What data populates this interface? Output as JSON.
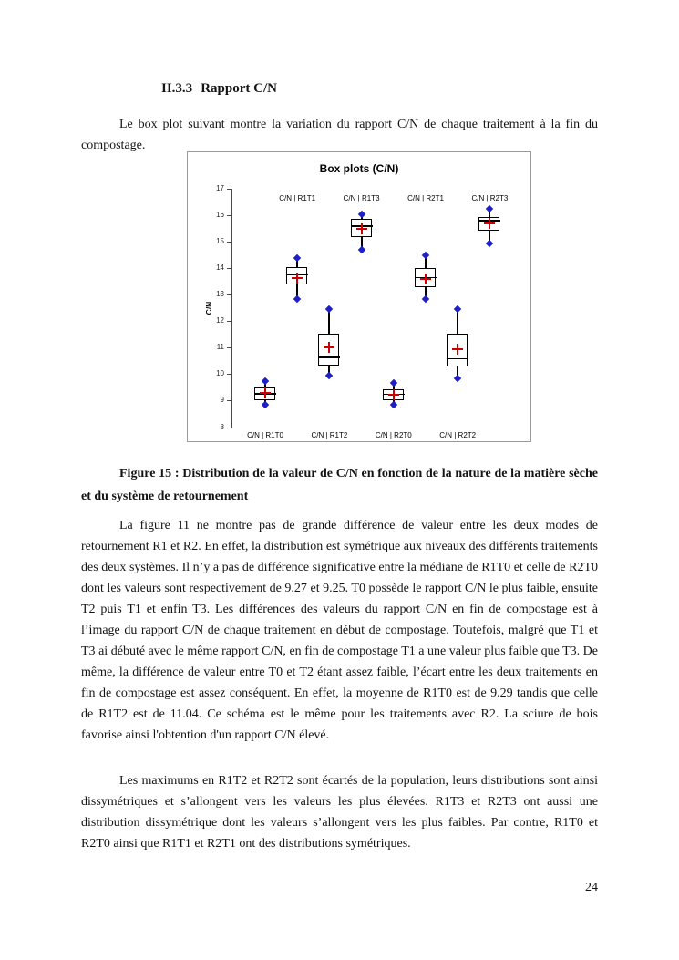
{
  "document": {
    "section": {
      "number": "II.3.3",
      "title": "Rapport C/N"
    },
    "paragraphs": {
      "intro": "Le box plot suivant montre la variation du rapport C/N de chaque traitement à la fin du compostage.",
      "analysis1": "La figure 11 ne montre pas de grande différence de valeur entre les deux modes de retournement R1 et R2. En effet, la distribution est symétrique aux niveaux des différents traitements des deux systèmes. Il n’y a pas de différence significative entre la médiane de R1T0 et celle de R2T0 dont les valeurs sont respectivement de 9.27 et 9.25. T0 possède le rapport C/N le plus faible, ensuite T2 puis T1 et enfin T3. Les différences des valeurs du rapport C/N en fin de compostage est à l’image du rapport C/N de chaque traitement en début de compostage. Toutefois, malgré que T1 et T3 ai débuté avec le même rapport C/N, en fin de compostage T1 a une valeur plus faible que T3. De même, la différence de valeur entre T0 et T2 étant assez faible, l’écart entre les deux traitements en fin de compostage est assez conséquent. En effet, la moyenne de R1T0 est de 9.29 tandis que celle de R1T2 est de 11.04. Ce schéma est le même pour les traitements avec R2. La sciure de bois favorise ainsi l'obtention d'un rapport C/N élevé.",
      "analysis2": "Les maximums en R1T2 et R2T2 sont écartés de la population, leurs distributions sont ainsi dissymétriques et s’allongent vers les valeurs les plus élevées. R1T3 et R2T3 ont aussi une distribution dissymétrique dont les valeurs s’allongent vers les plus faibles. Par contre, R1T0 et R2T0 ainsi que R1T1 et R2T1 ont des distributions symétriques."
    },
    "figure_caption": "Figure 15 : Distribution de la valeur de C/N en fonction de la nature de la matière sèche et du système de retournement",
    "page_number": "24"
  },
  "chart_data": {
    "type": "boxplot",
    "title": "Box plots (C/N)",
    "ylabel": "C/N",
    "ylim": [
      8,
      17
    ],
    "ytick_step": 1,
    "grid": false,
    "legend": "none",
    "series": [
      {
        "label": "C/N | R1T0",
        "label_position": "bottom",
        "min": 8.85,
        "q1": 9.0,
        "median": 9.27,
        "q3": 9.5,
        "max": 9.75,
        "mean": 9.29
      },
      {
        "label": "C/N | R1T1",
        "label_position": "top",
        "min": 12.85,
        "q1": 13.35,
        "median": 13.75,
        "q3": 14.05,
        "max": 14.4,
        "mean": 13.65
      },
      {
        "label": "C/N | R1T2",
        "label_position": "bottom",
        "min": 9.95,
        "q1": 10.3,
        "median": 10.65,
        "q3": 11.55,
        "max": 12.45,
        "mean": 11.04
      },
      {
        "label": "C/N | R1T3",
        "label_position": "top",
        "min": 14.7,
        "q1": 15.15,
        "median": 15.6,
        "q3": 15.85,
        "max": 16.05,
        "mean": 15.5
      },
      {
        "label": "C/N | R2T0",
        "label_position": "bottom",
        "min": 8.85,
        "q1": 9.0,
        "median": 9.25,
        "q3": 9.45,
        "max": 9.7,
        "mean": 9.25
      },
      {
        "label": "C/N | R2T1",
        "label_position": "top",
        "min": 12.85,
        "q1": 13.25,
        "median": 13.65,
        "q3": 14.0,
        "max": 14.5,
        "mean": 13.6
      },
      {
        "label": "C/N | R2T2",
        "label_position": "bottom",
        "min": 9.85,
        "q1": 10.25,
        "median": 10.6,
        "q3": 11.55,
        "max": 12.45,
        "mean": 10.95
      },
      {
        "label": "C/N | R2T3",
        "label_position": "top",
        "min": 14.95,
        "q1": 15.4,
        "median": 15.8,
        "q3": 15.95,
        "max": 16.25,
        "mean": 15.7
      }
    ],
    "colors": {
      "box": "#000000",
      "whisker": "#000000",
      "marker": "#1f1fc8",
      "mean": "#cc0000"
    }
  }
}
